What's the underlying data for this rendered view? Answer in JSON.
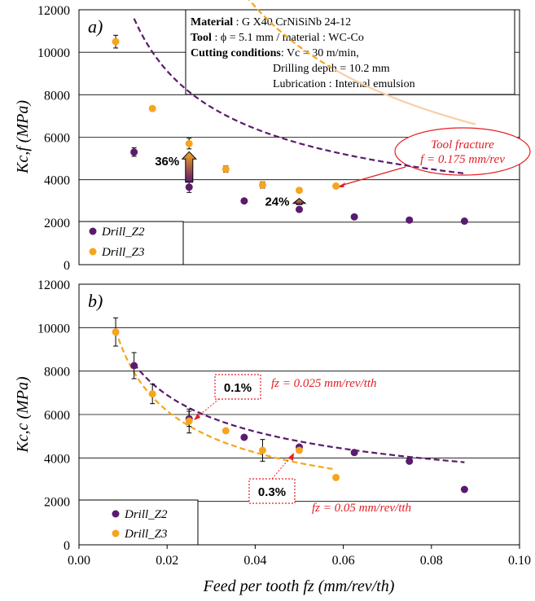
{
  "figure": {
    "xlabel": "Feed per tooth fz (mm/rev/th)",
    "xticks": [
      "0.00",
      "0.02",
      "0.04",
      "0.06",
      "0.08",
      "0.10"
    ]
  },
  "colors": {
    "z2": "#5a1a6e",
    "z3": "#f5a51e",
    "z3_fade": "#f8cfa5",
    "red": "#e31e24",
    "grid": "#000000"
  },
  "chart_data": [
    {
      "type": "scatter",
      "panel_label": "a)",
      "ylabel": "Kc,f (MPa)",
      "xlim": [
        0,
        0.1
      ],
      "ylim": [
        0,
        12000
      ],
      "yticks": [
        "0",
        "2000",
        "4000",
        "6000",
        "8000",
        "10000",
        "12000"
      ],
      "series": [
        {
          "name": "Drill_Z2",
          "x": [
            0.0125,
            0.025,
            0.0375,
            0.05,
            0.0625,
            0.075,
            0.0875
          ],
          "y": [
            5300,
            3650,
            3000,
            2600,
            2250,
            2100,
            2050
          ],
          "err": [
            200,
            250,
            0,
            0,
            0,
            0,
            0
          ],
          "fit": {
            "a": 1240,
            "b": 0.51,
            "x_range": [
              0.0125,
              0.0875
            ]
          }
        },
        {
          "name": "Drill_Z3",
          "x": [
            0.00833,
            0.01667,
            0.025,
            0.03333,
            0.04167,
            0.05,
            0.05833
          ],
          "y": [
            10500,
            7350,
            5700,
            4500,
            3750,
            3500,
            3700
          ],
          "err": [
            300,
            0,
            250,
            150,
            150,
            0,
            0
          ],
          "fit": {
            "a": 1086,
            "b": 0.75,
            "x_range": [
              0.00833,
              0.058
            ],
            "fade_range": [
              0.058,
              0.09
            ]
          }
        }
      ],
      "annotations": [
        {
          "text": "36%",
          "x": 0.025,
          "y_from": 3650,
          "y_to": 5700
        },
        {
          "text": "24%",
          "x": 0.05,
          "y_from": 2600,
          "y_to": 3500
        }
      ],
      "callout": {
        "line1": "Tool fracture",
        "line2": "f = 0.175 mm/rev"
      },
      "info_box": {
        "material_label": "Material",
        "material_value": " : G X40 CrNiSiNb 24-12",
        "tool_label": "Tool",
        "tool_value": " : ϕ = 5.1 mm /  material : WC-Co",
        "conditions_label": "Cutting conditions",
        "conditions_value": ": Vc = 30 m/min,",
        "depth": "Drilling depth = 10.2 mm",
        "lubrication": "Lubrication : Internal emulsion"
      }
    },
    {
      "type": "scatter",
      "panel_label": "b)",
      "ylabel": "Kc,c (MPa)",
      "xlim": [
        0,
        0.1
      ],
      "ylim": [
        0,
        12000
      ],
      "yticks": [
        "0",
        "2000",
        "4000",
        "6000",
        "8000",
        "10000",
        "12000"
      ],
      "series": [
        {
          "name": "Drill_Z2",
          "x": [
            0.0125,
            0.025,
            0.0375,
            0.05,
            0.0625,
            0.075,
            0.0875
          ],
          "y": [
            8250,
            5800,
            4950,
            4500,
            4250,
            3850,
            2550
          ],
          "err": [
            600,
            350,
            0,
            0,
            0,
            0,
            0
          ],
          "fit": {
            "a": 1425,
            "b": 0.403,
            "x_range": [
              0.0125,
              0.0875
            ]
          }
        },
        {
          "name": "Drill_Z3",
          "x": [
            0.00833,
            0.01667,
            0.025,
            0.03333,
            0.04167,
            0.05,
            0.05833
          ],
          "y": [
            9800,
            6950,
            5700,
            5250,
            4350,
            4350,
            3100
          ],
          "err": [
            650,
            450,
            550,
            0,
            500,
            0,
            0
          ],
          "fit": {
            "a": 752,
            "b": 0.538,
            "x_range": [
              0.00833,
              0.058
            ]
          }
        }
      ],
      "annotations": [
        {
          "text": "0.1%",
          "target_x": 0.0255,
          "target_y": 5700
        },
        {
          "text": "0.3%",
          "target_x": 0.0485,
          "target_y": 4450
        }
      ],
      "notes": [
        "fz = 0.025 mm/rev/tth",
        "fz = 0.05 mm/rev/tth"
      ]
    }
  ]
}
